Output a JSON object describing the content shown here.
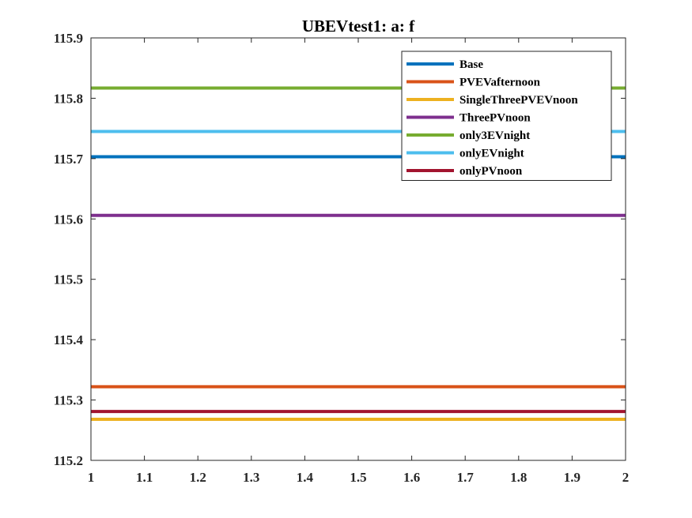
{
  "chart_data": {
    "type": "line",
    "title": "UBEVtest1: a: f",
    "xlabel": "",
    "ylabel": "",
    "xlim": [
      1,
      2
    ],
    "ylim": [
      115.2,
      115.9
    ],
    "x_ticks": [
      "1",
      "1.1",
      "1.2",
      "1.3",
      "1.4",
      "1.5",
      "1.6",
      "1.7",
      "1.8",
      "1.9",
      "2"
    ],
    "y_ticks": [
      "115.2",
      "115.3",
      "115.4",
      "115.5",
      "115.6",
      "115.7",
      "115.8",
      "115.9"
    ],
    "grid": false,
    "legend_position": "top-right",
    "series": [
      {
        "name": "Base",
        "color": "#0072BD",
        "x": [
          1,
          2
        ],
        "y": [
          115.703,
          115.703
        ]
      },
      {
        "name": "PVEVafternoon",
        "color": "#D95319",
        "x": [
          1,
          2
        ],
        "y": [
          115.322,
          115.322
        ]
      },
      {
        "name": "SingleThreePVEVnoon",
        "color": "#EDB120",
        "x": [
          1,
          2
        ],
        "y": [
          115.268,
          115.268
        ]
      },
      {
        "name": "ThreePVnoon",
        "color": "#7E2F8E",
        "x": [
          1,
          2
        ],
        "y": [
          115.606,
          115.606
        ]
      },
      {
        "name": "only3EVnight",
        "color": "#77AC30",
        "x": [
          1,
          2
        ],
        "y": [
          115.817,
          115.817
        ]
      },
      {
        "name": "onlyEVnight",
        "color": "#4DBEEE",
        "x": [
          1,
          2
        ],
        "y": [
          115.745,
          115.745
        ]
      },
      {
        "name": "onlyPVnoon",
        "color": "#A2142F",
        "x": [
          1,
          2
        ],
        "y": [
          115.281,
          115.281
        ]
      }
    ]
  }
}
